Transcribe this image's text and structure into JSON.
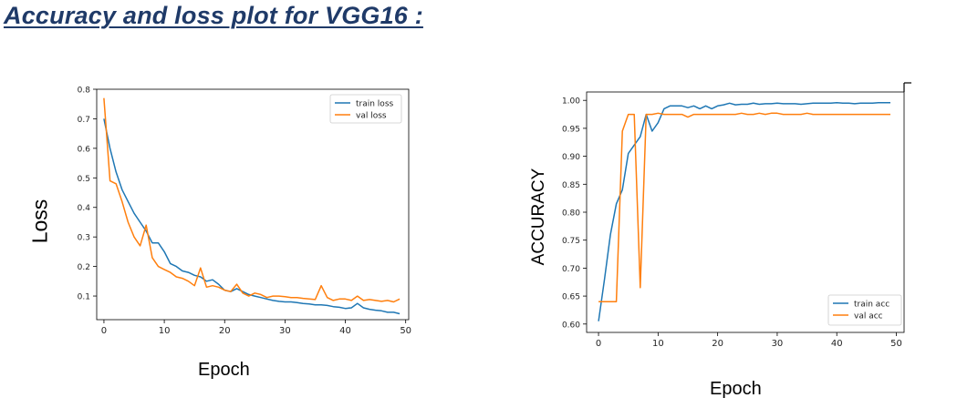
{
  "page": {
    "title": "Accuracy and loss plot for VGG16 :"
  },
  "colors": {
    "train": "#1f77b4",
    "val": "#ff7f0e",
    "title": "#1f3a68"
  },
  "chart_data": [
    {
      "type": "line",
      "ylabel": "Loss",
      "xlabel": "Epoch",
      "xlim": [
        -1.2,
        50.5
      ],
      "ylim": [
        0.02,
        0.8
      ],
      "xticks": [
        "0",
        "10",
        "20",
        "30",
        "40",
        "50"
      ],
      "yticks": [
        "0.1",
        "0.2",
        "0.3",
        "0.4",
        "0.5",
        "0.6",
        "0.7",
        "0.8"
      ],
      "legend_position": "top-right",
      "x": [
        0,
        1,
        2,
        3,
        4,
        5,
        6,
        7,
        8,
        9,
        10,
        11,
        12,
        13,
        14,
        15,
        16,
        17,
        18,
        19,
        20,
        21,
        22,
        23,
        24,
        25,
        26,
        27,
        28,
        29,
        30,
        31,
        32,
        33,
        34,
        35,
        36,
        37,
        38,
        39,
        40,
        41,
        42,
        43,
        44,
        45,
        46,
        47,
        48,
        49
      ],
      "series": [
        {
          "name": "train loss",
          "values": [
            0.7,
            0.6,
            0.52,
            0.46,
            0.42,
            0.38,
            0.35,
            0.32,
            0.28,
            0.28,
            0.25,
            0.21,
            0.2,
            0.185,
            0.18,
            0.17,
            0.165,
            0.15,
            0.155,
            0.14,
            0.12,
            0.115,
            0.125,
            0.115,
            0.105,
            0.1,
            0.095,
            0.09,
            0.085,
            0.082,
            0.08,
            0.08,
            0.078,
            0.075,
            0.073,
            0.07,
            0.07,
            0.068,
            0.064,
            0.062,
            0.058,
            0.06,
            0.075,
            0.06,
            0.055,
            0.052,
            0.05,
            0.045,
            0.045,
            0.04
          ]
        },
        {
          "name": "val loss",
          "values": [
            0.77,
            0.49,
            0.48,
            0.42,
            0.35,
            0.3,
            0.27,
            0.34,
            0.23,
            0.2,
            0.19,
            0.18,
            0.165,
            0.16,
            0.15,
            0.135,
            0.195,
            0.13,
            0.135,
            0.13,
            0.12,
            0.115,
            0.14,
            0.11,
            0.1,
            0.11,
            0.105,
            0.095,
            0.1,
            0.1,
            0.098,
            0.095,
            0.095,
            0.092,
            0.09,
            0.088,
            0.135,
            0.095,
            0.085,
            0.09,
            0.09,
            0.085,
            0.1,
            0.085,
            0.088,
            0.085,
            0.082,
            0.085,
            0.08,
            0.09
          ]
        }
      ]
    },
    {
      "type": "line",
      "ylabel": "ACCURACY",
      "xlabel": "Epoch",
      "xlim": [
        -2.0,
        51.3
      ],
      "ylim": [
        0.585,
        1.015
      ],
      "xticks": [
        "0",
        "10",
        "20",
        "30",
        "40",
        "50"
      ],
      "yticks": [
        "0.60",
        "0.65",
        "0.70",
        "0.75",
        "0.80",
        "0.85",
        "0.90",
        "0.95",
        "1.00"
      ],
      "legend_position": "bottom-right",
      "x": [
        0,
        1,
        2,
        3,
        4,
        5,
        6,
        7,
        8,
        9,
        10,
        11,
        12,
        13,
        14,
        15,
        16,
        17,
        18,
        19,
        20,
        21,
        22,
        23,
        24,
        25,
        26,
        27,
        28,
        29,
        30,
        31,
        32,
        33,
        34,
        35,
        36,
        37,
        38,
        39,
        40,
        41,
        42,
        43,
        44,
        45,
        46,
        47,
        48,
        49
      ],
      "series": [
        {
          "name": "train acc",
          "values": [
            0.605,
            0.68,
            0.76,
            0.815,
            0.84,
            0.905,
            0.92,
            0.935,
            0.975,
            0.945,
            0.96,
            0.985,
            0.99,
            0.99,
            0.99,
            0.987,
            0.99,
            0.985,
            0.99,
            0.985,
            0.99,
            0.992,
            0.995,
            0.992,
            0.993,
            0.993,
            0.995,
            0.993,
            0.994,
            0.994,
            0.995,
            0.994,
            0.994,
            0.994,
            0.993,
            0.994,
            0.995,
            0.995,
            0.995,
            0.995,
            0.996,
            0.995,
            0.995,
            0.994,
            0.995,
            0.995,
            0.995,
            0.996,
            0.996,
            0.996
          ]
        },
        {
          "name": "val acc",
          "values": [
            0.64,
            0.64,
            0.64,
            0.64,
            0.945,
            0.975,
            0.975,
            0.665,
            0.975,
            0.975,
            0.977,
            0.975,
            0.975,
            0.975,
            0.975,
            0.97,
            0.975,
            0.975,
            0.975,
            0.975,
            0.975,
            0.975,
            0.975,
            0.975,
            0.977,
            0.975,
            0.975,
            0.977,
            0.975,
            0.977,
            0.977,
            0.975,
            0.975,
            0.975,
            0.975,
            0.977,
            0.975,
            0.975,
            0.975,
            0.975,
            0.975,
            0.975,
            0.975,
            0.975,
            0.975,
            0.975,
            0.975,
            0.975,
            0.975,
            0.975
          ]
        }
      ]
    }
  ]
}
